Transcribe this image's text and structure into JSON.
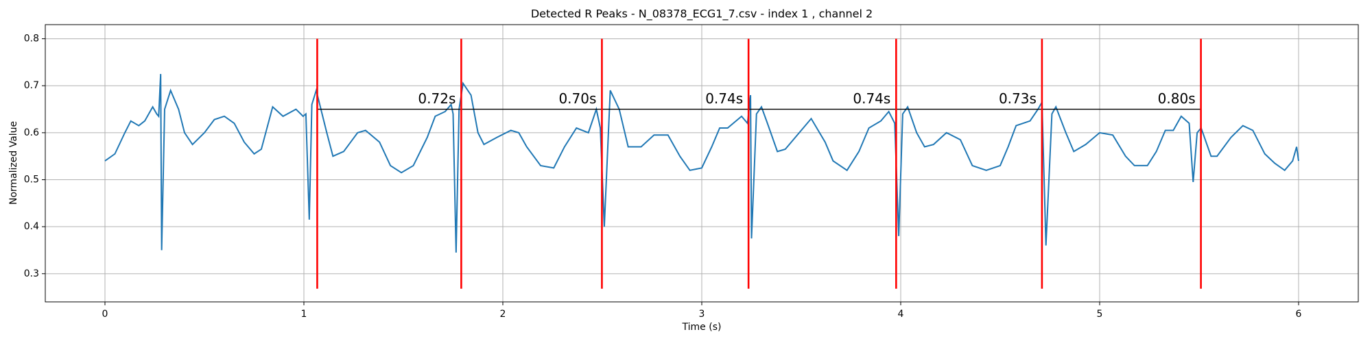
{
  "chart_data": {
    "type": "line",
    "title": "Detected R Peaks - N_08378_ECG1_7.csv - index 1 , channel 2",
    "xlabel": "Time (s)",
    "ylabel": "Normalized Value",
    "xlim": [
      -0.3,
      6.3
    ],
    "ylim": [
      0.24,
      0.83
    ],
    "xticks": [
      0,
      1,
      2,
      3,
      4,
      5,
      6
    ],
    "yticks": [
      0.3,
      0.4,
      0.5,
      0.6,
      0.7,
      0.8
    ],
    "grid": true,
    "color": "#1f77b4",
    "x": [
      0,
      0.05,
      0.1,
      0.13,
      0.17,
      0.2,
      0.24,
      0.26,
      0.27,
      0.28,
      0.285,
      0.3,
      0.33,
      0.37,
      0.4,
      0.44,
      0.5,
      0.55,
      0.6,
      0.65,
      0.7,
      0.75,
      0.786,
      0.843,
      0.895,
      0.96,
      0.996,
      1.01,
      1.027,
      1.04,
      1.062,
      1.115,
      1.146,
      1.2,
      1.27,
      1.31,
      1.38,
      1.435,
      1.49,
      1.55,
      1.62,
      1.66,
      1.71,
      1.74,
      1.75,
      1.765,
      1.78,
      1.8,
      1.84,
      1.875,
      1.905,
      1.97,
      2.04,
      2.08,
      2.12,
      2.19,
      2.256,
      2.31,
      2.37,
      2.43,
      2.47,
      2.49,
      2.51,
      2.54,
      2.585,
      2.63,
      2.695,
      2.76,
      2.83,
      2.89,
      2.94,
      3.0,
      3.05,
      3.09,
      3.13,
      3.2,
      3.23,
      3.245,
      3.25,
      3.275,
      3.3,
      3.33,
      3.38,
      3.42,
      3.49,
      3.55,
      3.62,
      3.66,
      3.73,
      3.79,
      3.84,
      3.9,
      3.94,
      3.97,
      3.99,
      4.01,
      4.035,
      4.08,
      4.12,
      4.165,
      4.23,
      4.3,
      4.36,
      4.43,
      4.5,
      4.54,
      4.58,
      4.65,
      4.69,
      4.71,
      4.73,
      4.76,
      4.78,
      4.83,
      4.87,
      4.93,
      5.0,
      5.066,
      5.13,
      5.175,
      5.24,
      5.285,
      5.33,
      5.37,
      5.41,
      5.45,
      5.47,
      5.49,
      5.51,
      5.56,
      5.59,
      5.66,
      5.72,
      5.77,
      5.83,
      5.88,
      5.93,
      5.97,
      5.99,
      6.0
    ],
    "values": [
      0.54,
      0.555,
      0.6,
      0.625,
      0.615,
      0.625,
      0.655,
      0.64,
      0.635,
      0.725,
      0.35,
      0.65,
      0.69,
      0.65,
      0.6,
      0.575,
      0.6,
      0.628,
      0.635,
      0.62,
      0.58,
      0.555,
      0.565,
      0.655,
      0.635,
      0.65,
      0.635,
      0.64,
      0.415,
      0.66,
      0.69,
      0.6,
      0.55,
      0.56,
      0.6,
      0.605,
      0.58,
      0.53,
      0.515,
      0.53,
      0.59,
      0.635,
      0.645,
      0.66,
      0.64,
      0.345,
      0.65,
      0.705,
      0.68,
      0.6,
      0.575,
      0.59,
      0.605,
      0.6,
      0.57,
      0.53,
      0.525,
      0.57,
      0.61,
      0.6,
      0.65,
      0.61,
      0.4,
      0.69,
      0.65,
      0.57,
      0.57,
      0.595,
      0.595,
      0.55,
      0.52,
      0.525,
      0.57,
      0.61,
      0.61,
      0.635,
      0.62,
      0.68,
      0.375,
      0.64,
      0.655,
      0.62,
      0.56,
      0.565,
      0.6,
      0.63,
      0.58,
      0.54,
      0.52,
      0.56,
      0.61,
      0.625,
      0.645,
      0.62,
      0.38,
      0.64,
      0.655,
      0.6,
      0.57,
      0.575,
      0.6,
      0.585,
      0.53,
      0.52,
      0.53,
      0.57,
      0.615,
      0.625,
      0.65,
      0.665,
      0.36,
      0.64,
      0.655,
      0.6,
      0.56,
      0.575,
      0.6,
      0.595,
      0.55,
      0.53,
      0.53,
      0.56,
      0.605,
      0.605,
      0.635,
      0.62,
      0.495,
      0.6,
      0.61,
      0.55,
      0.55,
      0.59,
      0.615,
      0.605,
      0.555,
      0.535,
      0.52,
      0.54,
      0.57,
      0.54
    ],
    "peaks": [
      1.067,
      1.791,
      2.498,
      3.235,
      3.977,
      4.71,
      5.509
    ],
    "peak_color": "#ff0000",
    "peak_ymin": 0.268,
    "peak_ymax": 0.8,
    "interval_y": 0.65,
    "interval_labels": [
      "0.72s",
      "0.70s",
      "0.74s",
      "0.74s",
      "0.73s",
      "0.80s"
    ]
  }
}
